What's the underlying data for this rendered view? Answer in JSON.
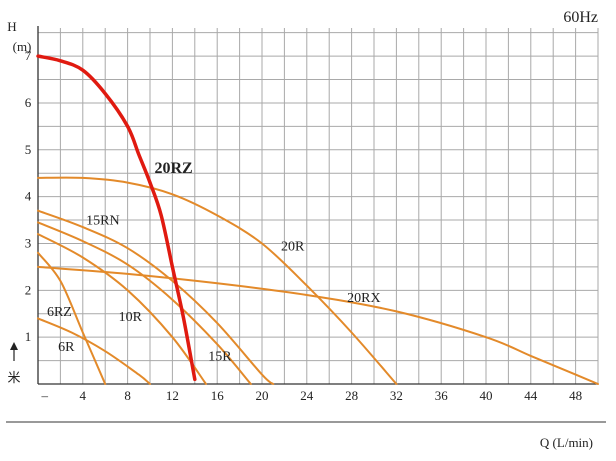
{
  "chart_data": {
    "type": "line",
    "frequency_label": "60Hz",
    "y_axis": {
      "label": "H",
      "unit": "(m)",
      "side_label": "米",
      "range": [
        0,
        7.6
      ],
      "ticks": [
        "1",
        "2",
        "3",
        "4",
        "5",
        "6",
        "7"
      ]
    },
    "x_axis": {
      "label": "Q (L/min)",
      "range": [
        0,
        50
      ],
      "first_tick": "–",
      "ticks": [
        "4",
        "8",
        "12",
        "16",
        "20",
        "24",
        "28",
        "32",
        "36",
        "40",
        "44",
        "48"
      ]
    },
    "grid": true,
    "line_color": "#e38a2a",
    "highlight_color": "#e01a10",
    "series": [
      {
        "name": "20RZ",
        "highlight": true,
        "x": [
          0,
          2,
          4,
          6,
          8,
          9,
          10,
          11,
          12,
          13,
          14
        ],
        "y": [
          7.0,
          6.9,
          6.7,
          6.2,
          5.5,
          4.9,
          4.3,
          3.6,
          2.5,
          1.4,
          0.1
        ]
      },
      {
        "name": "20R",
        "x": [
          0,
          4,
          8,
          12,
          16,
          20,
          24,
          28,
          32
        ],
        "y": [
          4.4,
          4.4,
          4.3,
          4.05,
          3.6,
          3.0,
          2.1,
          1.1,
          0.0
        ]
      },
      {
        "name": "20RX",
        "x": [
          0,
          8,
          16,
          24,
          32,
          40,
          44,
          48,
          50
        ],
        "y": [
          2.5,
          2.35,
          2.15,
          1.9,
          1.55,
          1.0,
          0.6,
          0.2,
          0.0
        ]
      },
      {
        "name": "15RN",
        "x": [
          0,
          4,
          8,
          12,
          16,
          20,
          21
        ],
        "y": [
          3.7,
          3.35,
          2.9,
          2.2,
          1.3,
          0.2,
          0.0
        ]
      },
      {
        "name": "15R",
        "x": [
          0,
          4,
          8,
          12,
          16,
          19
        ],
        "y": [
          3.45,
          3.05,
          2.55,
          1.8,
          0.85,
          0.0
        ]
      },
      {
        "name": "10R",
        "x": [
          0,
          4,
          8,
          12,
          15
        ],
        "y": [
          3.2,
          2.7,
          2.0,
          1.0,
          0.0
        ]
      },
      {
        "name": "6RZ",
        "x": [
          0,
          2,
          4,
          6
        ],
        "y": [
          2.8,
          2.2,
          1.1,
          0.0
        ]
      },
      {
        "name": "6R",
        "x": [
          0,
          3,
          6,
          9,
          10
        ],
        "y": [
          1.4,
          1.1,
          0.7,
          0.2,
          0.0
        ]
      }
    ]
  }
}
